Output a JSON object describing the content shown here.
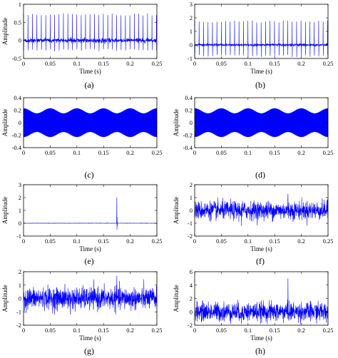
{
  "line_color": "#0000ff",
  "chart_data": [
    {
      "type": "line",
      "panel": "(a)",
      "xlabel": "Time (s)",
      "ylabel": "Amplitude",
      "xlim": [
        0,
        0.25
      ],
      "ylim": [
        -0.5,
        1
      ],
      "xticks": [
        "0",
        "0.05",
        "0.1",
        "0.15",
        "0.2",
        "0.25"
      ],
      "yticks": [
        "-0.5",
        "0",
        "0.5",
        "1"
      ],
      "signal": "periodic impulses",
      "series": [
        {
          "period_s": 0.0083,
          "peak": 0.75,
          "trough": -0.3,
          "baseline_noise": 0.03
        }
      ]
    },
    {
      "type": "line",
      "panel": "(b)",
      "xlabel": "Time (s)",
      "ylabel": "",
      "xlim": [
        0,
        0.25
      ],
      "ylim": [
        -1,
        3
      ],
      "xticks": [
        "0",
        "0.05",
        "0.1",
        "0.15",
        "0.2",
        "0.25"
      ],
      "yticks": [
        "-1",
        "0",
        "1",
        "2",
        "3"
      ],
      "signal": "periodic impulses",
      "series": [
        {
          "period_s": 0.0083,
          "peak": 1.8,
          "trough": -0.9,
          "baseline_noise": 0.05
        }
      ]
    },
    {
      "type": "line",
      "panel": "(c)",
      "xlabel": "",
      "ylabel": "Amplitude",
      "xlim": [
        0,
        0.25
      ],
      "ylim": [
        -0.4,
        0.4
      ],
      "xticks": [
        "0",
        "0.05",
        "0.1",
        "0.15",
        "0.2",
        "0.25"
      ],
      "yticks": [
        "-0.4",
        "-0.2",
        "0",
        "0.2",
        "0.4"
      ],
      "signal": "modulated harmonic",
      "series": [
        {
          "mean_amplitude": 0.19,
          "modulation_depth": 0.04,
          "modulation_cycles": 5
        }
      ]
    },
    {
      "type": "line",
      "panel": "(d)",
      "xlabel": "",
      "ylabel": "Amplitude",
      "xlim": [
        0,
        0.25
      ],
      "ylim": [
        -0.4,
        0.4
      ],
      "xticks": [
        "0",
        "0.05",
        "0.1",
        "0.15",
        "0.2",
        "0.25"
      ],
      "yticks": [
        "-0.4",
        "-0.2",
        "0",
        "0.2",
        "0.4"
      ],
      "signal": "modulated harmonic",
      "series": [
        {
          "mean_amplitude": 0.19,
          "modulation_depth": 0.04,
          "modulation_cycles": 5
        }
      ]
    },
    {
      "type": "line",
      "panel": "(e)",
      "xlabel": "Time (s)",
      "ylabel": "Amplitude",
      "xlim": [
        0,
        0.25
      ],
      "ylim": [
        -1,
        3
      ],
      "xticks": [
        "0",
        "0.05",
        "0.1",
        "0.15",
        "0.2",
        "0.25"
      ],
      "yticks": [
        "-1",
        "0",
        "1",
        "2",
        "3"
      ],
      "signal": "single transient",
      "series": [
        {
          "time_s": 0.175,
          "peak": 2.0,
          "trough": -0.5
        }
      ]
    },
    {
      "type": "line",
      "panel": "(f)",
      "xlabel": "Time (s)",
      "ylabel": "Amplitude",
      "xlim": [
        0,
        0.25
      ],
      "ylim": [
        -2,
        2
      ],
      "xticks": [
        "0",
        "0.05",
        "0.1",
        "0.15",
        "0.2",
        "0.25"
      ],
      "yticks": [
        "-2",
        "-1",
        "0",
        "1",
        "2"
      ],
      "signal": "noise",
      "series": [
        {
          "std": 0.35,
          "max": 1.3,
          "min": -1.2
        }
      ]
    },
    {
      "type": "line",
      "panel": "(g)",
      "xlabel": "Time (s)",
      "ylabel": "Amplitude",
      "xlim": [
        0,
        0.25
      ],
      "ylim": [
        -2,
        2
      ],
      "xticks": [
        "0",
        "0.05",
        "0.1",
        "0.15",
        "0.2",
        "0.25"
      ],
      "yticks": [
        "-2",
        "-1",
        "0",
        "1",
        "2"
      ],
      "signal": "composite noisy",
      "series": [
        {
          "std": 0.4,
          "max": 1.7,
          "min": -1.2
        }
      ]
    },
    {
      "type": "line",
      "panel": "(h)",
      "xlabel": "Time (s)",
      "ylabel": "Amplitude",
      "xlim": [
        0,
        0.25
      ],
      "ylim": [
        -2,
        6
      ],
      "xticks": [
        "0",
        "0.05",
        "0.1",
        "0.15",
        "0.2",
        "0.25"
      ],
      "yticks": [
        "-2",
        "0",
        "2",
        "4",
        "6"
      ],
      "signal": "composite noisy",
      "series": [
        {
          "std": 0.7,
          "max": 5.0,
          "min": -1.8
        }
      ]
    }
  ]
}
